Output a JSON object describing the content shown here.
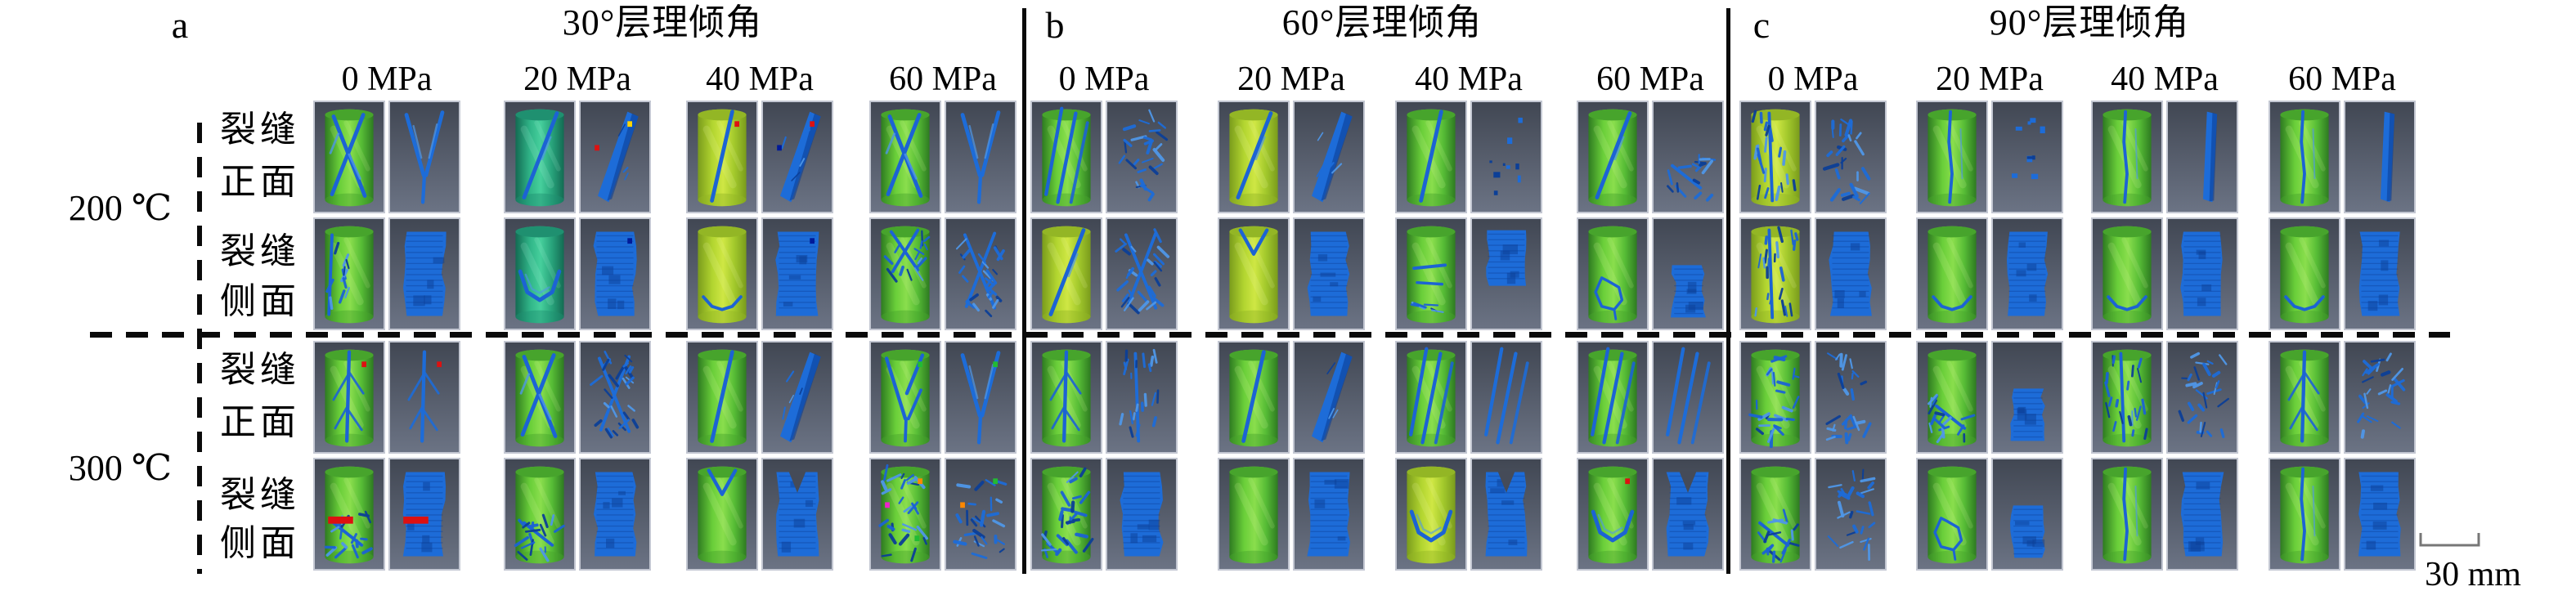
{
  "figure": {
    "panels": [
      {
        "letter": "a",
        "title": "30°层理倾角",
        "pressures": [
          "0 MPa",
          "20 MPa",
          "40 MPa",
          "60 MPa"
        ],
        "tiles": [
          [
            [
              {
                "view": "sample",
                "pattern": "x",
                "tint": "green"
              },
              {
                "view": "fracture",
                "pattern": "vnet"
              }
            ],
            [
              {
                "view": "sample",
                "pattern": "diag",
                "tint": "teal"
              },
              {
                "view": "fracture",
                "pattern": "sheet",
                "marks": [
                  "yellow",
                  "red"
                ]
              }
            ],
            [
              {
                "view": "sample",
                "pattern": "steep",
                "tint": "yellow",
                "marks": [
                  "red"
                ]
              },
              {
                "view": "fracture",
                "pattern": "sheet",
                "marks": [
                  "red",
                  "navy"
                ]
              }
            ],
            [
              {
                "view": "sample",
                "pattern": "x",
                "tint": "green"
              },
              {
                "view": "fracture",
                "pattern": "vnet"
              }
            ]
          ],
          [
            [
              {
                "view": "sample",
                "pattern": "webl",
                "tint": "green"
              },
              {
                "view": "fracture",
                "pattern": "mass"
              }
            ],
            [
              {
                "view": "sample",
                "pattern": "varc",
                "tint": "teal"
              },
              {
                "view": "fracture",
                "pattern": "mass",
                "marks": [
                  "navy"
                ]
              }
            ],
            [
              {
                "view": "sample",
                "pattern": "arc",
                "tint": "yellow"
              },
              {
                "view": "fracture",
                "pattern": "mass",
                "marks": [
                  "navy"
                ]
              }
            ],
            [
              {
                "view": "sample",
                "pattern": "xweb",
                "tint": "green"
              },
              {
                "view": "fracture",
                "pattern": "xnet"
              }
            ]
          ],
          [
            [
              {
                "view": "sample",
                "pattern": "branch",
                "tint": "green",
                "marks": [
                  "red"
                ]
              },
              {
                "view": "fracture",
                "pattern": "branch",
                "marks": [
                  "red"
                ]
              }
            ],
            [
              {
                "view": "sample",
                "pattern": "x",
                "tint": "green"
              },
              {
                "view": "fracture",
                "pattern": "xnet"
              }
            ],
            [
              {
                "view": "sample",
                "pattern": "steep",
                "tint": "green"
              },
              {
                "view": "fracture",
                "pattern": "sheet"
              }
            ],
            [
              {
                "view": "sample",
                "pattern": "vv",
                "tint": "green",
                "marks": [
                  "green"
                ]
              },
              {
                "view": "fracture",
                "pattern": "vnet",
                "marks": [
                  "green"
                ]
              }
            ]
          ],
          [
            [
              {
                "view": "sample",
                "pattern": "webb",
                "tint": "green",
                "marks": [
                  "redstreak"
                ]
              },
              {
                "view": "fracture",
                "pattern": "mass",
                "marks": [
                  "redstreak"
                ]
              }
            ],
            [
              {
                "view": "sample",
                "pattern": "webb",
                "tint": "green"
              },
              {
                "view": "fracture",
                "pattern": "mass"
              }
            ],
            [
              {
                "view": "sample",
                "pattern": "notch",
                "tint": "green"
              },
              {
                "view": "fracture",
                "pattern": "massn"
              }
            ],
            [
              {
                "view": "sample",
                "pattern": "net",
                "tint": "green",
                "marks": [
                  "orange",
                  "magenta",
                  "green"
                ]
              },
              {
                "view": "fracture",
                "pattern": "net",
                "marks": [
                  "green",
                  "orange"
                ]
              }
            ]
          ]
        ]
      },
      {
        "letter": "b",
        "title": "60°层理倾角",
        "pressures": [
          "0 MPa",
          "20 MPa",
          "40 MPa",
          "60 MPa"
        ],
        "tiles": [
          [
            [
              {
                "view": "sample",
                "pattern": "multi",
                "tint": "green"
              },
              {
                "view": "fracture",
                "pattern": "net"
              }
            ],
            [
              {
                "view": "sample",
                "pattern": "diag",
                "tint": "yellow"
              },
              {
                "view": "fracture",
                "pattern": "sheet"
              }
            ],
            [
              {
                "view": "sample",
                "pattern": "steep",
                "tint": "green"
              },
              {
                "view": "fracture",
                "pattern": "sparse"
              }
            ],
            [
              {
                "view": "sample",
                "pattern": "diag",
                "tint": "green"
              },
              {
                "view": "fracture",
                "pattern": "web"
              }
            ]
          ],
          [
            [
              {
                "view": "sample",
                "pattern": "diag",
                "tint": "yellow"
              },
              {
                "view": "fracture",
                "pattern": "xnet"
              }
            ],
            [
              {
                "view": "sample",
                "pattern": "notch",
                "tint": "yellow"
              },
              {
                "view": "fracture",
                "pattern": "mass"
              }
            ],
            [
              {
                "view": "sample",
                "pattern": "hband",
                "tint": "green"
              },
              {
                "view": "fracture",
                "pattern": "masst"
              }
            ],
            [
              {
                "view": "sample",
                "pattern": "loop",
                "tint": "green"
              },
              {
                "view": "fracture",
                "pattern": "clump"
              }
            ]
          ],
          [
            [
              {
                "view": "sample",
                "pattern": "branch",
                "tint": "green"
              },
              {
                "view": "fracture",
                "pattern": "vertnet"
              }
            ],
            [
              {
                "view": "sample",
                "pattern": "steep",
                "tint": "green"
              },
              {
                "view": "fracture",
                "pattern": "sheet"
              }
            ],
            [
              {
                "view": "sample",
                "pattern": "multi",
                "tint": "green"
              },
              {
                "view": "fracture",
                "pattern": "multi"
              }
            ],
            [
              {
                "view": "sample",
                "pattern": "multi",
                "tint": "green"
              },
              {
                "view": "fracture",
                "pattern": "multi"
              }
            ]
          ],
          [
            [
              {
                "view": "sample",
                "pattern": "net",
                "tint": "green"
              },
              {
                "view": "fracture",
                "pattern": "mass"
              }
            ],
            [
              {
                "view": "sample",
                "pattern": "smooth",
                "tint": "green"
              },
              {
                "view": "fracture",
                "pattern": "mass"
              }
            ],
            [
              {
                "view": "sample",
                "pattern": "varc",
                "tint": "yellow"
              },
              {
                "view": "fracture",
                "pattern": "massn"
              }
            ],
            [
              {
                "view": "sample",
                "pattern": "varc",
                "tint": "green",
                "marks": [
                  "red"
                ]
              },
              {
                "view": "fracture",
                "pattern": "massn"
              }
            ]
          ]
        ]
      },
      {
        "letter": "c",
        "title": "90°层理倾角",
        "pressures": [
          "0 MPa",
          "20 MPa",
          "40 MPa",
          "60 MPa"
        ],
        "tiles": [
          [
            [
              {
                "view": "sample",
                "pattern": "vertnet",
                "tint": "yellow"
              },
              {
                "view": "fracture",
                "pattern": "net"
              }
            ],
            [
              {
                "view": "sample",
                "pattern": "vert",
                "tint": "green"
              },
              {
                "view": "fracture",
                "pattern": "sparse"
              }
            ],
            [
              {
                "view": "sample",
                "pattern": "vert",
                "tint": "green"
              },
              {
                "view": "fracture",
                "pattern": "vsheet"
              }
            ],
            [
              {
                "view": "sample",
                "pattern": "vert",
                "tint": "green"
              },
              {
                "view": "fracture",
                "pattern": "vsheet"
              }
            ]
          ],
          [
            [
              {
                "view": "sample",
                "pattern": "vertnet",
                "tint": "yellow"
              },
              {
                "view": "fracture",
                "pattern": "mass"
              }
            ],
            [
              {
                "view": "sample",
                "pattern": "arc",
                "tint": "green"
              },
              {
                "view": "fracture",
                "pattern": "mass"
              }
            ],
            [
              {
                "view": "sample",
                "pattern": "arc",
                "tint": "green"
              },
              {
                "view": "fracture",
                "pattern": "mass"
              }
            ],
            [
              {
                "view": "sample",
                "pattern": "arc",
                "tint": "green"
              },
              {
                "view": "fracture",
                "pattern": "mass"
              }
            ]
          ],
          [
            [
              {
                "view": "sample",
                "pattern": "net",
                "tint": "green"
              },
              {
                "view": "fracture",
                "pattern": "net"
              }
            ],
            [
              {
                "view": "sample",
                "pattern": "webb",
                "tint": "green"
              },
              {
                "view": "fracture",
                "pattern": "clump"
              }
            ],
            [
              {
                "view": "sample",
                "pattern": "vertnet",
                "tint": "green"
              },
              {
                "view": "fracture",
                "pattern": "net"
              }
            ],
            [
              {
                "view": "sample",
                "pattern": "branch",
                "tint": "green"
              },
              {
                "view": "fracture",
                "pattern": "net"
              }
            ]
          ],
          [
            [
              {
                "view": "sample",
                "pattern": "webb",
                "tint": "green"
              },
              {
                "view": "fracture",
                "pattern": "net"
              }
            ],
            [
              {
                "view": "sample",
                "pattern": "loop",
                "tint": "green"
              },
              {
                "view": "fracture",
                "pattern": "clump"
              }
            ],
            [
              {
                "view": "sample",
                "pattern": "vert",
                "tint": "green"
              },
              {
                "view": "fracture",
                "pattern": "mass"
              }
            ],
            [
              {
                "view": "sample",
                "pattern": "vert",
                "tint": "green"
              },
              {
                "view": "fracture",
                "pattern": "mass"
              }
            ]
          ]
        ]
      }
    ],
    "left_axis": {
      "temperature_groups": [
        {
          "label": "200 ℃",
          "row_labels": [
            [
              "裂缝",
              "正面"
            ],
            [
              "裂缝",
              "侧面"
            ]
          ]
        },
        {
          "label": "300 ℃",
          "row_labels": [
            [
              "裂缝",
              "正面"
            ],
            [
              "裂缝",
              "侧面"
            ]
          ]
        }
      ]
    },
    "scale_bar": {
      "label": "30 mm"
    },
    "colors": {
      "sample_green": "#69ce39",
      "sample_teal": "#30b588",
      "sample_yellow": "#b2d530",
      "fracture_blue": "#1d6cd8",
      "fracture_blue_light": "#4f97e8",
      "fracture_blue_dark": "#0c3f97",
      "tile_background_top": "#414753",
      "tile_background_bottom": "#6b7384",
      "tile_border": "#c3c7d2",
      "divider_black": "#0a0a0a",
      "mark_red": "#dd1111",
      "mark_yellow": "#ffd400",
      "mark_navy": "#001a99",
      "mark_green": "#22bb33",
      "mark_orange": "#ff8800",
      "mark_magenta": "#ee22cc"
    }
  }
}
